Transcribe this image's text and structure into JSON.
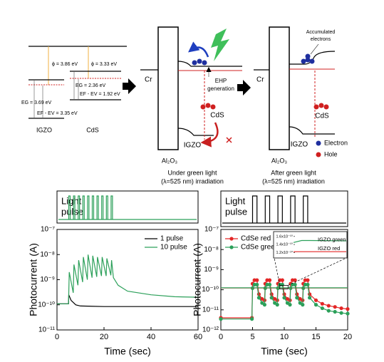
{
  "band_diagram": {
    "igzo": {
      "label": "IGZO",
      "work_function": "ϕ = 3.86 eV",
      "band_gap": "EG = 3.69 eV",
      "fermi": "EF - EV = 3.35 eV"
    },
    "cds": {
      "label": "CdS",
      "work_function": "ϕ = 3.33 eV",
      "band_gap": "EG = 2.36 eV",
      "fermi": "EF - EV = 1.92 eV"
    }
  },
  "under_light": {
    "metal": "Cr",
    "generation": [
      "EHP",
      "generation"
    ],
    "channel": "CdS",
    "semiconductor": "IGZO",
    "dielectric": "Al₂O₃",
    "caption": [
      "Under green light",
      "(λ=525 nm) irradiation"
    ]
  },
  "after_light": {
    "note": [
      "Accumulated",
      "electrons"
    ],
    "metal": "Cr",
    "channel": "CdS",
    "semiconductor": "IGZO",
    "dielectric": "Al₂O₃",
    "caption": [
      "After green light",
      "(λ=525 nm) irradiation"
    ]
  },
  "carrier_legend": [
    "Electron",
    "Hole"
  ],
  "chart_data": [
    {
      "type": "line",
      "pulse": {
        "label": [
          "Light",
          "pulse"
        ],
        "color": "#2ca05a",
        "starts": [
          5,
          7,
          9,
          11,
          13,
          15,
          17,
          19,
          21,
          23
        ],
        "width": 0.6
      },
      "xlabel": "Time (sec)",
      "ylabel": "Photocurrent (A)",
      "xlim": [
        0,
        60
      ],
      "xticks": [
        0,
        20,
        40,
        60
      ],
      "yscale": "log",
      "ylim": [
        1e-11,
        1e-07
      ],
      "yticks": [
        {
          "value": 1e-11,
          "label": "10⁻¹¹"
        },
        {
          "value": 1e-10,
          "label": "10⁻¹⁰"
        },
        {
          "value": 1e-09,
          "label": "10⁻⁹"
        },
        {
          "value": 1e-08,
          "label": "10⁻⁸"
        },
        {
          "value": 1e-07,
          "label": "10⁻⁷"
        }
      ],
      "legend": "upper right",
      "series": [
        {
          "name": "1 pulse",
          "color": "#000000",
          "x": [
            0,
            4.9,
            5,
            6,
            8,
            10,
            20,
            40,
            60
          ],
          "values": [
            1.1e-10,
            1.1e-10,
            2.5e-10,
            1.5e-10,
            1e-10,
            9e-11,
            8.5e-11,
            8.5e-11,
            8.5e-11
          ]
        },
        {
          "name": "10 pulse",
          "color": "#2ca05a",
          "x": [
            0,
            4.9,
            5.2,
            6.9,
            7.2,
            8.9,
            9.2,
            10.9,
            11.2,
            12.9,
            13.2,
            14.9,
            15.2,
            16.9,
            17.2,
            18.9,
            19.2,
            20.9,
            21.2,
            22.9,
            23.2,
            24,
            26,
            30,
            40,
            50,
            60
          ],
          "values": [
            1.1e-10,
            1.1e-10,
            2e-09,
            3e-10,
            4e-09,
            6e-10,
            6e-09,
            8e-10,
            8e-09,
            1e-09,
            1e-08,
            1.2e-09,
            9e-09,
            1.3e-09,
            8e-09,
            1.4e-09,
            8e-09,
            1.4e-09,
            7e-09,
            1.5e-09,
            6e-09,
            1.2e-09,
            6e-10,
            3.5e-10,
            2.5e-10,
            2.1e-10,
            2e-10
          ]
        }
      ]
    },
    {
      "type": "line",
      "pulse": {
        "label": [
          "Light",
          "pulse"
        ],
        "color": "#000000",
        "starts": [
          5,
          7,
          9,
          11,
          13
        ],
        "width": 0.7
      },
      "xlabel": "Time (sec)",
      "ylabel": "Photocurrent (A)",
      "xlim": [
        0,
        20
      ],
      "xticks": [
        0,
        5,
        10,
        15,
        20
      ],
      "yscale": "log",
      "ylim": [
        1e-12,
        1e-07
      ],
      "yticks": [
        {
          "value": 1e-12,
          "label": "10⁻¹²"
        },
        {
          "value": 1e-11,
          "label": "10⁻¹¹"
        },
        {
          "value": 1e-10,
          "label": "10⁻¹⁰"
        },
        {
          "value": 1e-09,
          "label": "10⁻⁹"
        },
        {
          "value": 1e-08,
          "label": "10⁻⁸"
        },
        {
          "value": 1e-07,
          "label": "10⁻⁷"
        }
      ],
      "legend": "upper left",
      "series": [
        {
          "name": "CdSe red",
          "color": "#e32626",
          "marker": "o",
          "x": [
            0,
            4.9,
            5,
            5.3,
            5.7,
            6,
            6.5,
            6.9,
            7,
            7.3,
            7.7,
            8,
            8.5,
            8.9,
            9,
            9.3,
            9.7,
            10,
            10.5,
            10.9,
            11,
            11.3,
            11.7,
            12,
            12.5,
            12.9,
            13,
            13.3,
            13.7,
            14,
            15,
            16,
            17,
            18,
            19,
            20
          ],
          "values": [
            4e-12,
            4e-12,
            2e-10,
            3e-10,
            3e-10,
            6e-11,
            3.5e-11,
            3e-11,
            2e-10,
            3e-10,
            3e-10,
            6e-11,
            3.5e-11,
            3e-11,
            2e-10,
            3e-10,
            3e-10,
            6e-11,
            3.5e-11,
            3e-11,
            2e-10,
            3e-10,
            3e-10,
            6e-11,
            3.5e-11,
            3e-11,
            2e-10,
            3e-10,
            3e-10,
            6e-11,
            3e-11,
            2e-11,
            1.6e-11,
            1.4e-11,
            1.2e-11,
            1.1e-11
          ]
        },
        {
          "name": "CdSe green",
          "color": "#2ca05a",
          "marker": "o",
          "x": [
            0,
            4.9,
            5,
            5.3,
            5.7,
            6,
            6.5,
            6.9,
            7,
            7.3,
            7.7,
            8,
            8.5,
            8.9,
            9,
            9.3,
            9.7,
            10,
            10.5,
            10.9,
            11,
            11.3,
            11.7,
            12,
            12.5,
            12.9,
            13,
            13.3,
            13.7,
            14,
            15,
            16,
            17,
            18,
            19,
            20
          ],
          "values": [
            3.5e-12,
            3.5e-12,
            1.2e-10,
            1.8e-10,
            1.8e-10,
            4e-11,
            2.2e-11,
            1.8e-11,
            1.2e-10,
            1.8e-10,
            1.8e-10,
            4e-11,
            2.2e-11,
            1.8e-11,
            1.2e-10,
            1.8e-10,
            1.8e-10,
            4e-11,
            2.2e-11,
            1.8e-11,
            1.2e-10,
            1.8e-10,
            1.8e-10,
            4e-11,
            2.2e-11,
            1.8e-11,
            1.2e-10,
            1.8e-10,
            1.8e-10,
            4e-11,
            1.8e-11,
            1.2e-11,
            9e-12,
            8e-12,
            7e-12,
            6.5e-12
          ]
        },
        {
          "color": "#e32626",
          "x": [
            0,
            20
          ],
          "values": [
            1.22e-10,
            1.22e-10
          ]
        },
        {
          "color": "#2ca05a",
          "x": [
            0,
            20
          ],
          "values": [
            1.25e-10,
            1.25e-10
          ]
        }
      ],
      "inset": {
        "xlim": [
          9.3,
          10.6
        ],
        "ylim": [
          1.1e-10,
          1.65e-10
        ],
        "yticks": [
          {
            "value": 1.6e-10,
            "label": "1.6x10⁻¹⁰"
          },
          {
            "value": 1.4e-10,
            "label": "1.4x10⁻¹⁰"
          },
          {
            "value": 1.2e-10,
            "label": "1.2x10⁻¹⁰"
          }
        ],
        "series": [
          {
            "name": "IGZO red",
            "color": "#e32626",
            "x": [
              9.3,
              10.6
            ],
            "values": [
              1.22e-10,
              1.22e-10
            ]
          },
          {
            "name": "IGZO green",
            "color": "#2ca05a",
            "x": [
              9.3,
              9.5,
              9.7,
              10.6
            ],
            "values": [
              1.45e-10,
              1.5e-10,
              1.5e-10,
              1.49e-10
            ]
          }
        ]
      }
    }
  ]
}
